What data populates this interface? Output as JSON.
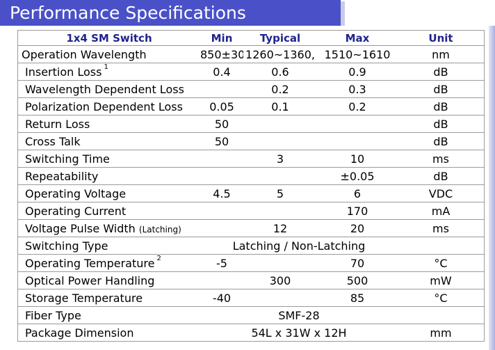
{
  "title": "Performance Specifications",
  "headers": {
    "name": "1x4 SM Switch",
    "min": "Min",
    "typical": "Typical",
    "max": "Max",
    "unit": "Unit"
  },
  "rows": [
    {
      "name": "Operation Wavelength",
      "min": "850±30,",
      "typical": "1260~1360,",
      "max": "1510~1610",
      "unit": "nm"
    },
    {
      "name": "Insertion Loss",
      "sup": "1",
      "min": "0.4",
      "typical": "0.6",
      "max": "0.9",
      "unit": "dB"
    },
    {
      "name": "Wavelength Dependent Loss",
      "min": "",
      "typical": "0.2",
      "max": "0.3",
      "unit": "dB"
    },
    {
      "name": "Polarization Dependent Loss",
      "min": "0.05",
      "typical": "0.1",
      "max": "0.2",
      "unit": "dB"
    },
    {
      "name": "Return Loss",
      "min": "50",
      "typical": "",
      "max": "",
      "unit": "dB"
    },
    {
      "name": "Cross Talk",
      "min": "50",
      "typical": "",
      "max": "",
      "unit": "dB"
    },
    {
      "name": "Switching Time",
      "min": "",
      "typical": "3",
      "max": "10",
      "unit": "ms"
    },
    {
      "name": "Repeatability",
      "min": "",
      "typical": "",
      "max": "±0.05",
      "unit": "dB"
    },
    {
      "name": "Operating Voltage",
      "min": "4.5",
      "typical": "5",
      "max": "6",
      "unit": "VDC"
    },
    {
      "name": "Operating Current",
      "min": "",
      "typical": "",
      "max": "170",
      "unit": "mA"
    },
    {
      "name": "Voltage Pulse Width",
      "note": "(Latching)",
      "min": "",
      "typical": "12",
      "max": "20",
      "unit": "ms"
    },
    {
      "name": "Switching Type",
      "span": "Latching / Non-Latching",
      "unit": ""
    },
    {
      "name": "Operating Temperature",
      "sup": "2",
      "min": "-5",
      "typical": "",
      "max": "70",
      "unit": "°C"
    },
    {
      "name": "Optical Power Handling",
      "min": "",
      "typical": "300",
      "max": "500",
      "unit": "mW"
    },
    {
      "name": "Storage Temperature",
      "min": "-40",
      "typical": "",
      "max": "85",
      "unit": "°C"
    },
    {
      "name": "Fiber Type",
      "span": "SMF-28",
      "unit": ""
    },
    {
      "name": "Package Dimension",
      "span": "54L x 31W x 12H",
      "unit": "mm"
    }
  ]
}
